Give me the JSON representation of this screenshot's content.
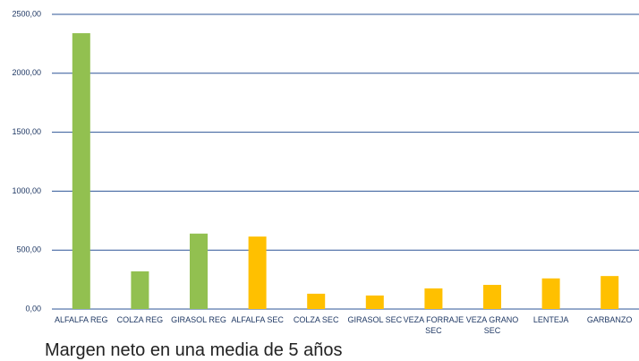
{
  "chart_data": {
    "type": "bar",
    "title": "Margen neto en una media de 5 años",
    "categories": [
      "ALFALFA REG",
      "COLZA REG",
      "GIRASOL REG",
      "ALFALFA SEC",
      "COLZA SEC",
      "GIRASOL SEC",
      "VEZA FORRAJE SEC",
      "VEZA GRANO SEC",
      "LENTEJA",
      "GARBANZO"
    ],
    "values": [
      2340,
      320,
      640,
      615,
      130,
      115,
      175,
      205,
      260,
      280
    ],
    "colors": [
      "#92c050",
      "#92c050",
      "#92c050",
      "#ffc000",
      "#ffc000",
      "#ffc000",
      "#ffc000",
      "#ffc000",
      "#ffc000",
      "#ffc000"
    ],
    "ylim": [
      0,
      2500
    ],
    "yticks": [
      {
        "value": 0,
        "label": "0,00"
      },
      {
        "value": 500,
        "label": "500,00"
      },
      {
        "value": 1000,
        "label": "1000,00"
      },
      {
        "value": 1500,
        "label": "1500,00"
      },
      {
        "value": 2000,
        "label": "2000,00"
      },
      {
        "value": 2500,
        "label": "2500,00"
      }
    ],
    "grid": true
  }
}
